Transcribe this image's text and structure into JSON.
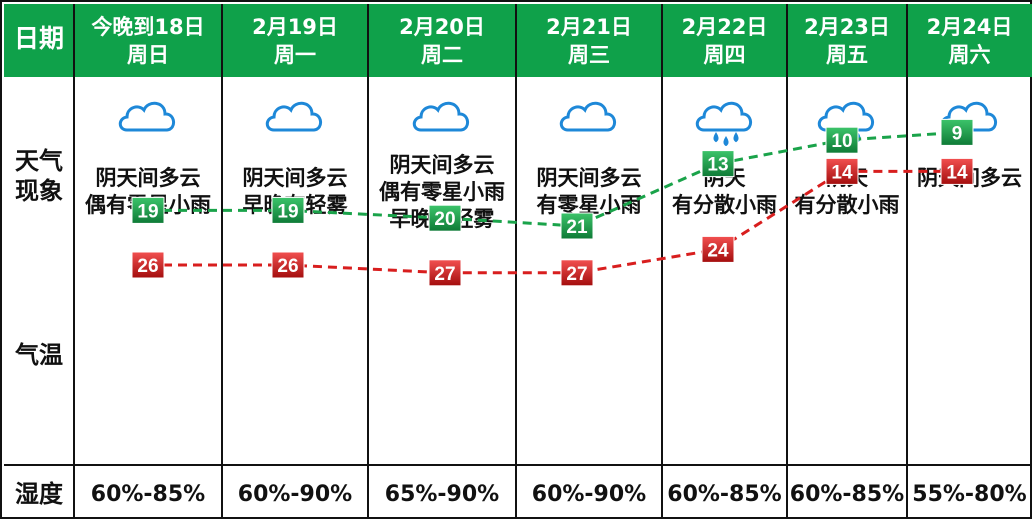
{
  "header": {
    "date_label": "日期",
    "days": [
      {
        "date": "今晚到18日",
        "weekday": "周日"
      },
      {
        "date": "2月19日",
        "weekday": "周一"
      },
      {
        "date": "2月20日",
        "weekday": "周二"
      },
      {
        "date": "2月21日",
        "weekday": "周三"
      },
      {
        "date": "2月22日",
        "weekday": "周四"
      },
      {
        "date": "2月23日",
        "weekday": "周五"
      },
      {
        "date": "2月24日",
        "weekday": "周六"
      }
    ]
  },
  "rows": {
    "weather_label_1": "天气",
    "weather_label_2": "现象",
    "temp_label": "气温",
    "humidity_label": "湿度"
  },
  "weather": [
    {
      "icon": "cloud-icon",
      "lines": [
        "阴天间多云",
        "偶有零星小雨"
      ]
    },
    {
      "icon": "cloud-icon",
      "lines": [
        "阴天间多云",
        "早晚有轻雾"
      ]
    },
    {
      "icon": "cloud-icon",
      "lines": [
        "阴天间多云",
        "偶有零星小雨",
        "早晚有轻雾"
      ]
    },
    {
      "icon": "cloud-icon",
      "lines": [
        "阴天间多云",
        "有零星小雨"
      ]
    },
    {
      "icon": "rain-cloud-icon",
      "lines": [
        "阴天",
        "有分散小雨"
      ]
    },
    {
      "icon": "rain-cloud-icon",
      "lines": [
        "阴天",
        "有分散小雨"
      ]
    },
    {
      "icon": "cloud-icon",
      "lines": [
        "阴天间多云"
      ]
    }
  ],
  "humidity": [
    "60%-85%",
    "60%-90%",
    "65%-90%",
    "60%-90%",
    "60%-85%",
    "60%-85%",
    "55%-80%"
  ],
  "chart_data": {
    "type": "line",
    "categories": [
      "今晚到18日",
      "2月19日",
      "2月20日",
      "2月21日",
      "2月22日",
      "2月23日",
      "2月24日"
    ],
    "series": [
      {
        "values": [
          26,
          26,
          27,
          27,
          24,
          14,
          14
        ],
        "color": "#d81e1e"
      },
      {
        "values": [
          19,
          19,
          20,
          21,
          13,
          10,
          9
        ],
        "color": "#1aa34a"
      }
    ],
    "line_style": "dashed",
    "title": "",
    "xlabel": "",
    "ylabel": ""
  },
  "colors": {
    "header_green": "#0fa14a",
    "high_red": "#d81e1e",
    "low_green": "#1aa34a",
    "cloud_blue": "#1e88d8"
  }
}
